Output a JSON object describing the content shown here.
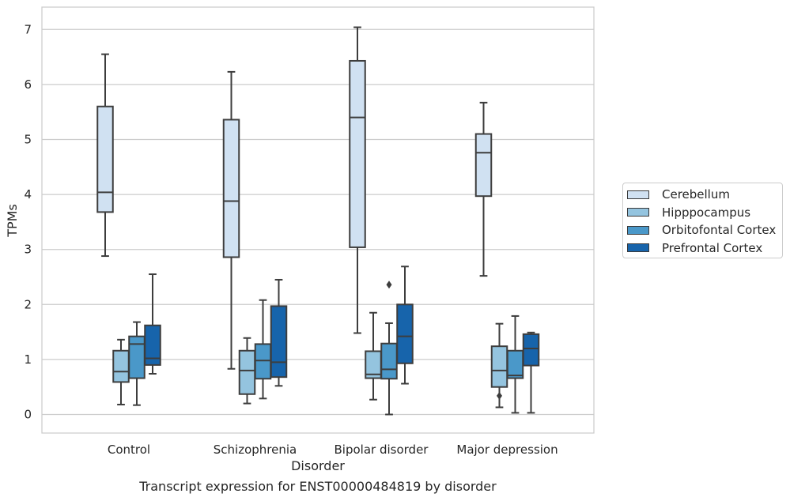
{
  "chart_data": {
    "type": "box",
    "title": "",
    "caption": "Transcript expression for ENST00000484819 by disorder",
    "xlabel": "Disorder",
    "ylabel": "TPMs",
    "ylim": [
      -0.33,
      7.4
    ],
    "yticks": [
      0,
      1,
      2,
      3,
      4,
      5,
      6,
      7
    ],
    "grid": true,
    "legend_position": "right",
    "categories": [
      "Control",
      "Schizophrenia",
      "Bipolar disorder",
      "Major depression"
    ],
    "series": [
      {
        "name": "Cerebellum",
        "color": "#d0e1f2",
        "boxes": [
          {
            "whisker_low": 2.88,
            "q1": 3.68,
            "median": 4.04,
            "q3": 5.6,
            "whisker_high": 6.55,
            "outliers": []
          },
          {
            "whisker_low": 0.83,
            "q1": 2.86,
            "median": 3.88,
            "q3": 5.36,
            "whisker_high": 6.23,
            "outliers": []
          },
          {
            "whisker_low": 1.48,
            "q1": 3.04,
            "median": 5.4,
            "q3": 6.43,
            "whisker_high": 7.04,
            "outliers": []
          },
          {
            "whisker_low": 2.52,
            "q1": 3.97,
            "median": 4.76,
            "q3": 5.1,
            "whisker_high": 5.67,
            "outliers": []
          }
        ]
      },
      {
        "name": "Hipppocampus",
        "color": "#94c4df",
        "boxes": [
          {
            "whisker_low": 0.18,
            "q1": 0.59,
            "median": 0.78,
            "q3": 1.16,
            "whisker_high": 1.36,
            "outliers": []
          },
          {
            "whisker_low": 0.2,
            "q1": 0.37,
            "median": 0.8,
            "q3": 1.16,
            "whisker_high": 1.39,
            "outliers": []
          },
          {
            "whisker_low": 0.27,
            "q1": 0.66,
            "median": 0.73,
            "q3": 1.15,
            "whisker_high": 1.85,
            "outliers": []
          },
          {
            "whisker_low": 0.13,
            "q1": 0.5,
            "median": 0.8,
            "q3": 1.24,
            "whisker_high": 1.65,
            "outliers": [
              0.34
            ]
          }
        ]
      },
      {
        "name": "Orbitofontal Cortex",
        "color": "#4a98c9",
        "boxes": [
          {
            "whisker_low": 0.17,
            "q1": 0.66,
            "median": 1.28,
            "q3": 1.42,
            "whisker_high": 1.68,
            "outliers": []
          },
          {
            "whisker_low": 0.29,
            "q1": 0.65,
            "median": 0.98,
            "q3": 1.28,
            "whisker_high": 2.08,
            "outliers": []
          },
          {
            "whisker_low": 0.0,
            "q1": 0.65,
            "median": 0.82,
            "q3": 1.29,
            "whisker_high": 1.66,
            "outliers": [
              2.36
            ]
          },
          {
            "whisker_low": 0.03,
            "q1": 0.66,
            "median": 0.71,
            "q3": 1.16,
            "whisker_high": 1.79,
            "outliers": []
          }
        ]
      },
      {
        "name": "Prefrontal Cortex",
        "color": "#1764ab",
        "boxes": [
          {
            "whisker_low": 0.74,
            "q1": 0.9,
            "median": 1.02,
            "q3": 1.62,
            "whisker_high": 2.55,
            "outliers": []
          },
          {
            "whisker_low": 0.52,
            "q1": 0.68,
            "median": 0.95,
            "q3": 1.97,
            "whisker_high": 2.45,
            "outliers": []
          },
          {
            "whisker_low": 0.56,
            "q1": 0.93,
            "median": 1.42,
            "q3": 2.0,
            "whisker_high": 2.69,
            "outliers": []
          },
          {
            "whisker_low": 0.03,
            "q1": 0.89,
            "median": 1.2,
            "q3": 1.46,
            "whisker_high": 1.49,
            "outliers": []
          }
        ]
      }
    ]
  }
}
